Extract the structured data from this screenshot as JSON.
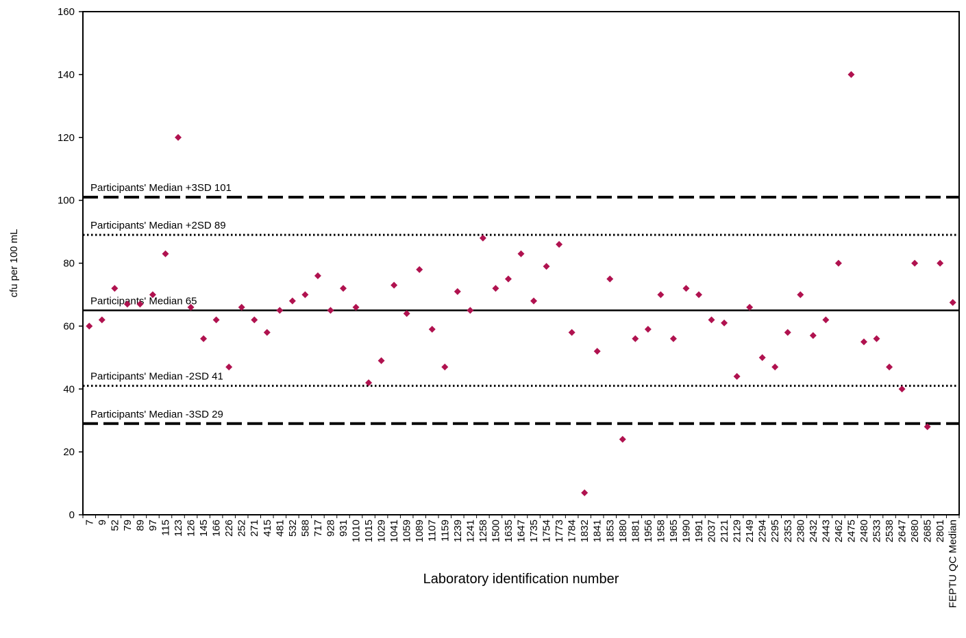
{
  "chart_data": {
    "type": "scatter",
    "xlabel": "Laboratory identification number",
    "ylabel": "cfu per 100 mL",
    "ylim": [
      0,
      160
    ],
    "yticks": [
      0,
      20,
      40,
      60,
      80,
      100,
      120,
      140,
      160
    ],
    "grid": false,
    "marker_color": "#b0124f",
    "categories": [
      "7",
      "9",
      "52",
      "79",
      "89",
      "97",
      "115",
      "123",
      "126",
      "145",
      "166",
      "226",
      "252",
      "271",
      "415",
      "481",
      "532",
      "588",
      "717",
      "928",
      "931",
      "1010",
      "1015",
      "1029",
      "1041",
      "1059",
      "1089",
      "1107",
      "1159",
      "1239",
      "1241",
      "1258",
      "1500",
      "1635",
      "1647",
      "1735",
      "1754",
      "1773",
      "1784",
      "1832",
      "1841",
      "1853",
      "1880",
      "1881",
      "1956",
      "1958",
      "1965",
      "1990",
      "1991",
      "2037",
      "2121",
      "2129",
      "2149",
      "2294",
      "2295",
      "2353",
      "2380",
      "2432",
      "2443",
      "2462",
      "2475",
      "2480",
      "2533",
      "2538",
      "2647",
      "2680",
      "2685",
      "2801",
      "FEPTU QC Median"
    ],
    "values": [
      60,
      62,
      72,
      67,
      67,
      70,
      83,
      120,
      66,
      56,
      62,
      47,
      66,
      62,
      58,
      65,
      68,
      70,
      76,
      65,
      72,
      66,
      42,
      49,
      73,
      64,
      78,
      59,
      47,
      71,
      65,
      88,
      72,
      75,
      83,
      68,
      79,
      86,
      58,
      7,
      52,
      75,
      24,
      56,
      59,
      70,
      56,
      72,
      70,
      62,
      61,
      44,
      66,
      50,
      47,
      58,
      70,
      57,
      62,
      80,
      140,
      55,
      56,
      47,
      40,
      80,
      28,
      80,
      67.5
    ],
    "reference_lines": [
      {
        "label": "Participants' Median +3SD",
        "value": 101,
        "value_text": "101",
        "style": "dashed"
      },
      {
        "label": "Participants' Median +2SD",
        "value": 89,
        "value_text": "89",
        "style": "dotted"
      },
      {
        "label": "Participants' Median",
        "value": 65,
        "value_text": "65",
        "style": "solid"
      },
      {
        "label": "Participants' Median -2SD",
        "value": 41,
        "value_text": "41",
        "style": "dotted"
      },
      {
        "label": "Participants' Median -3SD",
        "value": 29,
        "value_text": "29",
        "style": "dashed"
      }
    ]
  }
}
